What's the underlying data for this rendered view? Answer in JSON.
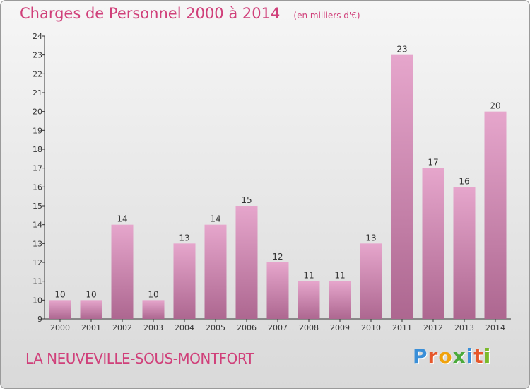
{
  "page": {
    "title": "Charges de Personnel 2000 à 2014",
    "unit": "(en milliers d'€)",
    "place": "LA NEUVEVILLE-SOUS-MONTFORT",
    "brand": "Proxiti"
  },
  "brand_colors": [
    "#3a8fd8",
    "#e6572b",
    "#f0a20c",
    "#4caa3c",
    "#3a8fd8",
    "#e6572b",
    "#7aba2a"
  ],
  "colors": {
    "accent": "#d0407a",
    "bar_top": "#e6a6cc",
    "bar_bottom": "#ad6790",
    "axis": "#333333",
    "grid": "#cfcfcf"
  },
  "chart_data": {
    "type": "bar",
    "categories": [
      "2000",
      "2001",
      "2002",
      "2003",
      "2004",
      "2005",
      "2006",
      "2007",
      "2008",
      "2009",
      "2010",
      "2011",
      "2012",
      "2013",
      "2014"
    ],
    "values": [
      10,
      10,
      14,
      10,
      13,
      14,
      15,
      12,
      11,
      11,
      13,
      23,
      17,
      16,
      20
    ],
    "ylim": [
      9,
      24
    ],
    "yticks": [
      9,
      10,
      11,
      12,
      13,
      14,
      15,
      16,
      17,
      18,
      19,
      20,
      21,
      22,
      23,
      24
    ],
    "grid": false,
    "data_labels": true
  }
}
